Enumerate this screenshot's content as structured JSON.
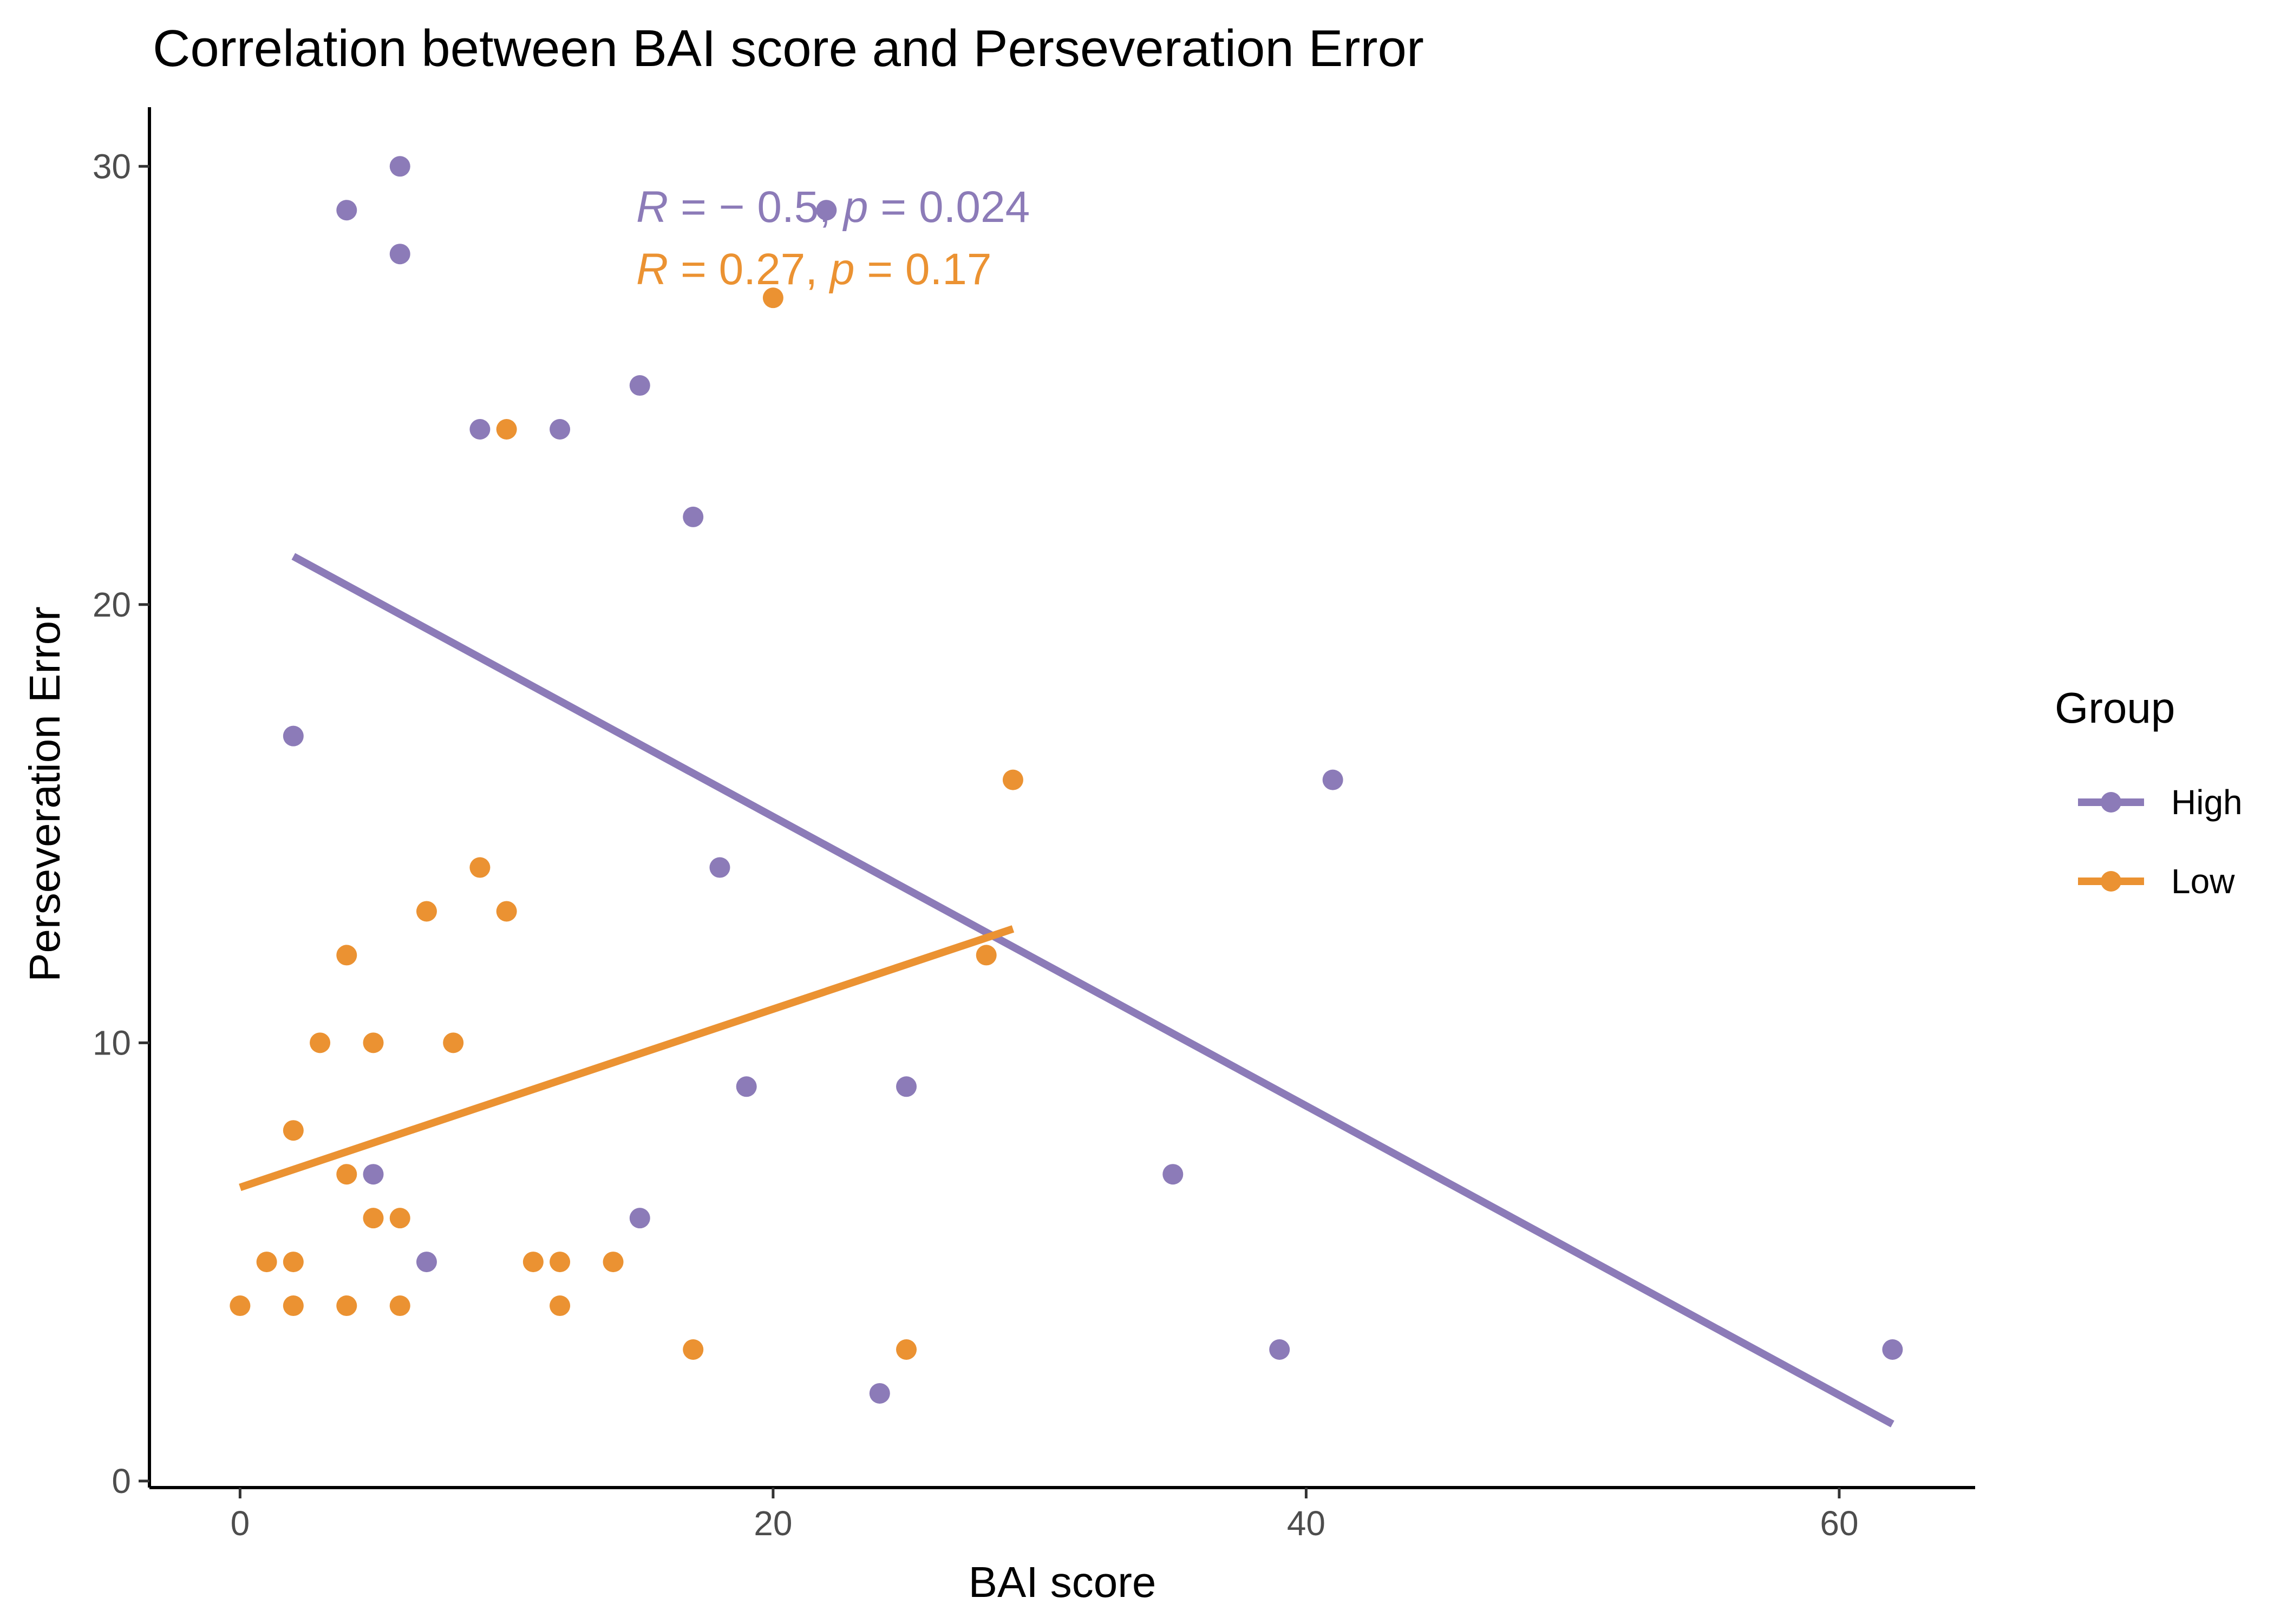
{
  "chart_data": {
    "type": "scatter",
    "title": "Correlation between BAI score and Perseveration Error",
    "xlabel": "BAI score",
    "ylabel": "Perseveration Error",
    "xlim": [
      -3.4,
      65.1
    ],
    "ylim": [
      -0.15,
      31.35
    ],
    "xticks": [
      0,
      20,
      40,
      60
    ],
    "yticks": [
      0,
      10,
      20,
      30
    ],
    "grid": false,
    "legend": {
      "title": "Group",
      "position": "right"
    },
    "series": [
      {
        "name": "High",
        "color": "#8c7bb8",
        "points": [
          [
            4,
            29
          ],
          [
            6,
            30
          ],
          [
            6,
            28
          ],
          [
            9,
            24
          ],
          [
            12,
            24
          ],
          [
            15,
            25
          ],
          [
            17,
            22
          ],
          [
            22,
            29
          ],
          [
            2,
            17
          ],
          [
            18,
            14
          ],
          [
            19,
            9
          ],
          [
            25,
            9
          ],
          [
            5,
            7
          ],
          [
            7,
            5
          ],
          [
            15,
            6
          ],
          [
            24,
            2
          ],
          [
            35,
            7
          ],
          [
            39,
            3
          ],
          [
            41,
            16
          ],
          [
            62,
            3
          ]
        ],
        "fit": {
          "x": [
            2,
            62
          ],
          "y": [
            21.1,
            1.3
          ]
        },
        "stat": {
          "r_label": "R",
          "r_value": " = − 0.5, ",
          "p_label": "p",
          "p_value": " = 0.024"
        }
      },
      {
        "name": "Low",
        "color": "#eb9232",
        "points": [
          [
            0,
            4
          ],
          [
            1,
            5
          ],
          [
            2,
            5
          ],
          [
            2,
            4
          ],
          [
            2,
            8
          ],
          [
            3,
            10
          ],
          [
            4,
            4
          ],
          [
            4,
            7
          ],
          [
            4,
            12
          ],
          [
            5,
            6
          ],
          [
            5,
            10
          ],
          [
            6,
            6
          ],
          [
            6,
            4
          ],
          [
            7,
            13
          ],
          [
            8,
            10
          ],
          [
            9,
            14
          ],
          [
            10,
            13
          ],
          [
            10,
            24
          ],
          [
            11,
            5
          ],
          [
            12,
            5
          ],
          [
            12,
            4
          ],
          [
            14,
            5
          ],
          [
            17,
            3
          ],
          [
            20,
            27
          ],
          [
            25,
            3
          ],
          [
            28,
            12
          ],
          [
            29,
            16
          ]
        ],
        "fit": {
          "x": [
            0,
            29
          ],
          "y": [
            6.7,
            12.6
          ]
        },
        "stat": {
          "r_label": "R",
          "r_value": " = 0.27, ",
          "p_label": "p",
          "p_value": " = 0.17"
        }
      }
    ]
  }
}
